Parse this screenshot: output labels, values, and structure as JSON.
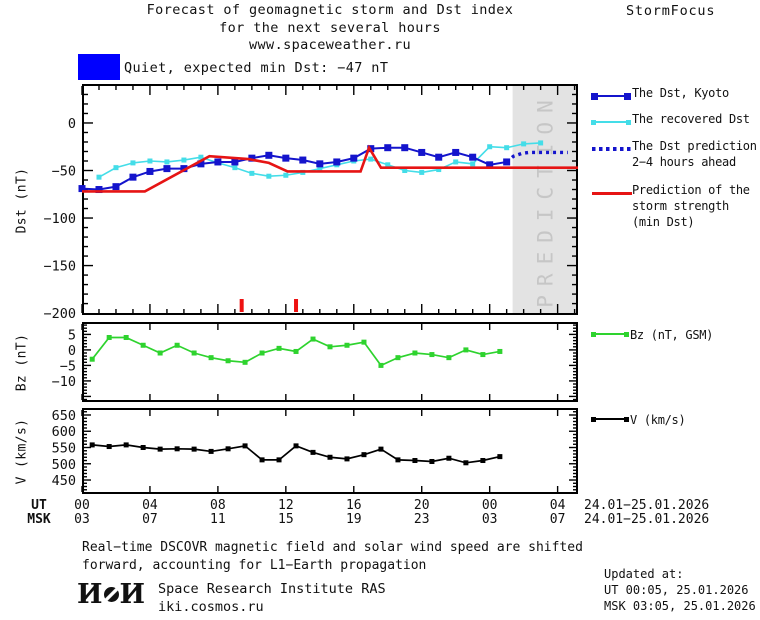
{
  "title": {
    "line1": "Forecast of geomagnetic storm and Dst index",
    "line2": "for the next several hours",
    "line3": "www.spaceweather.ru",
    "brand": "StormFocus"
  },
  "status": {
    "label": "Quiet, expected min Dst: −47 nT",
    "swatch_color": "#0000ff"
  },
  "colors": {
    "dst_kyoto": "#1414cc",
    "recovered_dst": "#44dde8",
    "prediction_red": "#e61414",
    "bz_green": "#2ed32e",
    "v_black": "#000000",
    "legend_box_blue": "#0000ff",
    "prediction_zone": "#e3e3e3",
    "prediction_zone_text": "#c6c6c6"
  },
  "legend_dst": {
    "items": [
      {
        "name": "dst-kyoto",
        "label": "The Dst, Kyoto",
        "color": "#1414cc",
        "style": "squares"
      },
      {
        "name": "recovered-dst",
        "label": "The recovered Dst",
        "color": "#44dde8",
        "style": "squares"
      },
      {
        "name": "dst-prediction",
        "label": "The Dst prediction",
        "label2": "2−4 hours ahead",
        "color": "#1414cc",
        "style": "dotted"
      },
      {
        "name": "storm-strength",
        "label": "Prediction of the",
        "label2": "storm strength",
        "label3": "(min Dst)",
        "color": "#e61414",
        "style": "line"
      }
    ]
  },
  "legend_bz": {
    "label": "Bz (nT, GSM)",
    "color": "#2ed32e"
  },
  "legend_v": {
    "label": "V (km/s)",
    "color": "#000000"
  },
  "xaxis": {
    "ut_label": "UT",
    "msk_label": "MSK",
    "tick_hours": [
      0,
      4,
      8,
      12,
      16,
      20,
      24,
      28
    ],
    "ut_ticks": [
      "00",
      "04",
      "08",
      "12",
      "16",
      "20",
      "00",
      "04"
    ],
    "msk_ticks": [
      "03",
      "07",
      "11",
      "15",
      "19",
      "23",
      "03",
      "07"
    ],
    "ut_date": "24.01−25.01.2026",
    "msk_date": "24.01−25.01.2026"
  },
  "footnote": {
    "line1": "Real−time DSCOVR magnetic field and solar wind speed are shifted",
    "line2": "forward, accounting for L1−Earth propagation"
  },
  "footer": {
    "logo_left": "И",
    "logo_right": "И",
    "institute": "Space Research Institute RAS",
    "site": "iki.cosmos.ru",
    "updated_label": "Updated at:",
    "updated_ut": "UT  00:05, 25.01.2026",
    "updated_msk": "MSK 03:05, 25.01.2026"
  },
  "chart_data": {
    "type": "line",
    "panels": [
      {
        "id": "dst",
        "ylabel": "Dst (nT)",
        "ox": 42,
        "xmin": 0,
        "xmax": 29.2,
        "ytop": 41,
        "ybottom": -202,
        "yminor_step": 10,
        "ymajor_step": 50,
        "ylabels": [
          {
            "v": 0,
            "t": "0"
          },
          {
            "v": -50,
            "t": "−50"
          },
          {
            "v": -100,
            "t": "−100"
          },
          {
            "v": -150,
            "t": "−150"
          },
          {
            "v": -200,
            "t": "−200"
          }
        ],
        "xmajor": [
          0,
          4,
          8,
          12,
          16,
          20,
          24,
          28
        ],
        "xminor_show": true,
        "tl": {
          "xmaj": 9,
          "xmin": 4,
          "ymaj": 9,
          "ymin": 4
        },
        "zone": {
          "from": 25.35,
          "label": "PREDICTION",
          "color": "#e3e3e3",
          "text_color": "#c6c6c6"
        },
        "onset_hours": [
          9.4,
          12.6
        ],
        "onset_color": "#ee1111",
        "series": [
          {
            "name": "recovered-dst",
            "color": "#44dde8",
            "width": 1.6,
            "marker": 5,
            "points": [
              [
                1,
                -57
              ],
              [
                2,
                -47
              ],
              [
                3,
                -42
              ],
              [
                4,
                -40
              ],
              [
                5,
                -41
              ],
              [
                6,
                -39
              ],
              [
                7,
                -36
              ],
              [
                8,
                -42
              ],
              [
                9,
                -47
              ],
              [
                10,
                -53
              ],
              [
                11,
                -56
              ],
              [
                12,
                -55
              ],
              [
                13,
                -52
              ],
              [
                14,
                -48
              ],
              [
                15,
                -44
              ],
              [
                16,
                -40
              ],
              [
                17,
                -38
              ],
              [
                18,
                -44
              ],
              [
                19,
                -50
              ],
              [
                20,
                -52
              ],
              [
                21,
                -49
              ],
              [
                22,
                -41
              ],
              [
                23,
                -43
              ],
              [
                24,
                -25
              ],
              [
                25,
                -26
              ],
              [
                26,
                -22
              ],
              [
                27,
                -21
              ]
            ]
          },
          {
            "name": "dst-kyoto",
            "color": "#1414cc",
            "width": 2,
            "marker": 7,
            "points": [
              [
                0,
                -69
              ],
              [
                1,
                -70
              ],
              [
                2,
                -67
              ],
              [
                3,
                -57
              ],
              [
                4,
                -51
              ],
              [
                5,
                -48
              ],
              [
                6,
                -48
              ],
              [
                7,
                -43
              ],
              [
                8,
                -41
              ],
              [
                9,
                -41
              ],
              [
                10,
                -37
              ],
              [
                11,
                -34
              ],
              [
                12,
                -37
              ],
              [
                13,
                -39
              ],
              [
                14,
                -43
              ],
              [
                15,
                -41
              ],
              [
                16,
                -37
              ],
              [
                17,
                -27
              ],
              [
                18,
                -26
              ],
              [
                19,
                -26
              ],
              [
                20,
                -31
              ],
              [
                21,
                -36
              ],
              [
                22,
                -31
              ],
              [
                23,
                -36
              ],
              [
                24,
                -44
              ],
              [
                25,
                -41
              ]
            ]
          },
          {
            "name": "storm-strength-prediction",
            "color": "#e61414",
            "width": 2.6,
            "points": [
              [
                0,
                -72
              ],
              [
                3.7,
                -72
              ],
              [
                7.5,
                -35
              ],
              [
                9.8,
                -38
              ],
              [
                11,
                -42
              ],
              [
                12.1,
                -51
              ],
              [
                16.4,
                -51
              ],
              [
                16.9,
                -26
              ],
              [
                17.6,
                -47
              ],
              [
                29.2,
                -47
              ]
            ]
          },
          {
            "name": "dst-prediction",
            "color": "#1414cc",
            "width": 3.4,
            "dash": "3 4",
            "points": [
              [
                25,
                -41
              ],
              [
                25.4,
                -35
              ],
              [
                25.9,
                -32
              ],
              [
                26.3,
                -31
              ],
              [
                28.6,
                -31
              ]
            ]
          }
        ]
      },
      {
        "id": "bz",
        "ylabel": "Bz (nT)",
        "ox": 42,
        "xmin": 0,
        "xmax": 29.2,
        "ytop": 9,
        "ybottom": -16.8,
        "yminor_step": 1,
        "ymajor_step": 5,
        "ylabels": [
          {
            "v": 5,
            "t": "5"
          },
          {
            "v": 0,
            "t": "0"
          },
          {
            "v": -5,
            "t": "−5"
          },
          {
            "v": -10,
            "t": "−10"
          }
        ],
        "xmajor": [
          0,
          4,
          8,
          12,
          16,
          20,
          24,
          28
        ],
        "xminor_show": false,
        "tl": {
          "xmaj": 6,
          "xmin": 3,
          "ymaj": 7,
          "ymin": 3
        },
        "series": [
          {
            "name": "bz-gsm",
            "color": "#2ed32e",
            "width": 1.7,
            "marker": 5,
            "x_start": 0.6,
            "x_step": 1,
            "values": [
              -3,
              4,
              4,
              1.5,
              -1,
              1.5,
              -1,
              -2.5,
              -3.5,
              -4,
              -1,
              0.5,
              -0.5,
              3.5,
              1,
              1.5,
              2.5,
              -5,
              -2.5,
              -1,
              -1.5,
              -2.5,
              0,
              -1.5,
              -0.5
            ]
          }
        ]
      },
      {
        "id": "v",
        "ylabel": "V (km/s)",
        "ox": 42,
        "xmin": 0,
        "xmax": 29.2,
        "ytop": 671.5,
        "ybottom": 407,
        "yminor_step": 10,
        "ymajor_step": 50,
        "ylabels": [
          {
            "v": 650,
            "t": "650"
          },
          {
            "v": 600,
            "t": "600"
          },
          {
            "v": 550,
            "t": "550"
          },
          {
            "v": 500,
            "t": "500"
          },
          {
            "v": 450,
            "t": "450"
          }
        ],
        "xmajor": [
          0,
          4,
          8,
          12,
          16,
          20,
          24,
          28
        ],
        "xminor_show": false,
        "tl": {
          "xmaj": 6,
          "xmin": 3,
          "ymaj": 7,
          "ymin": 3
        },
        "series": [
          {
            "name": "solar-wind-speed",
            "color": "#000000",
            "width": 1.7,
            "marker": 5,
            "x_start": 0.6,
            "x_step": 1,
            "values": [
              558,
              553,
              558,
              550,
              545,
              546,
              545,
              538,
              546,
              555,
              512,
              512,
              555,
              535,
              520,
              515,
              528,
              545,
              512,
              510,
              507,
              517,
              503,
              510,
              522
            ]
          }
        ]
      }
    ]
  }
}
